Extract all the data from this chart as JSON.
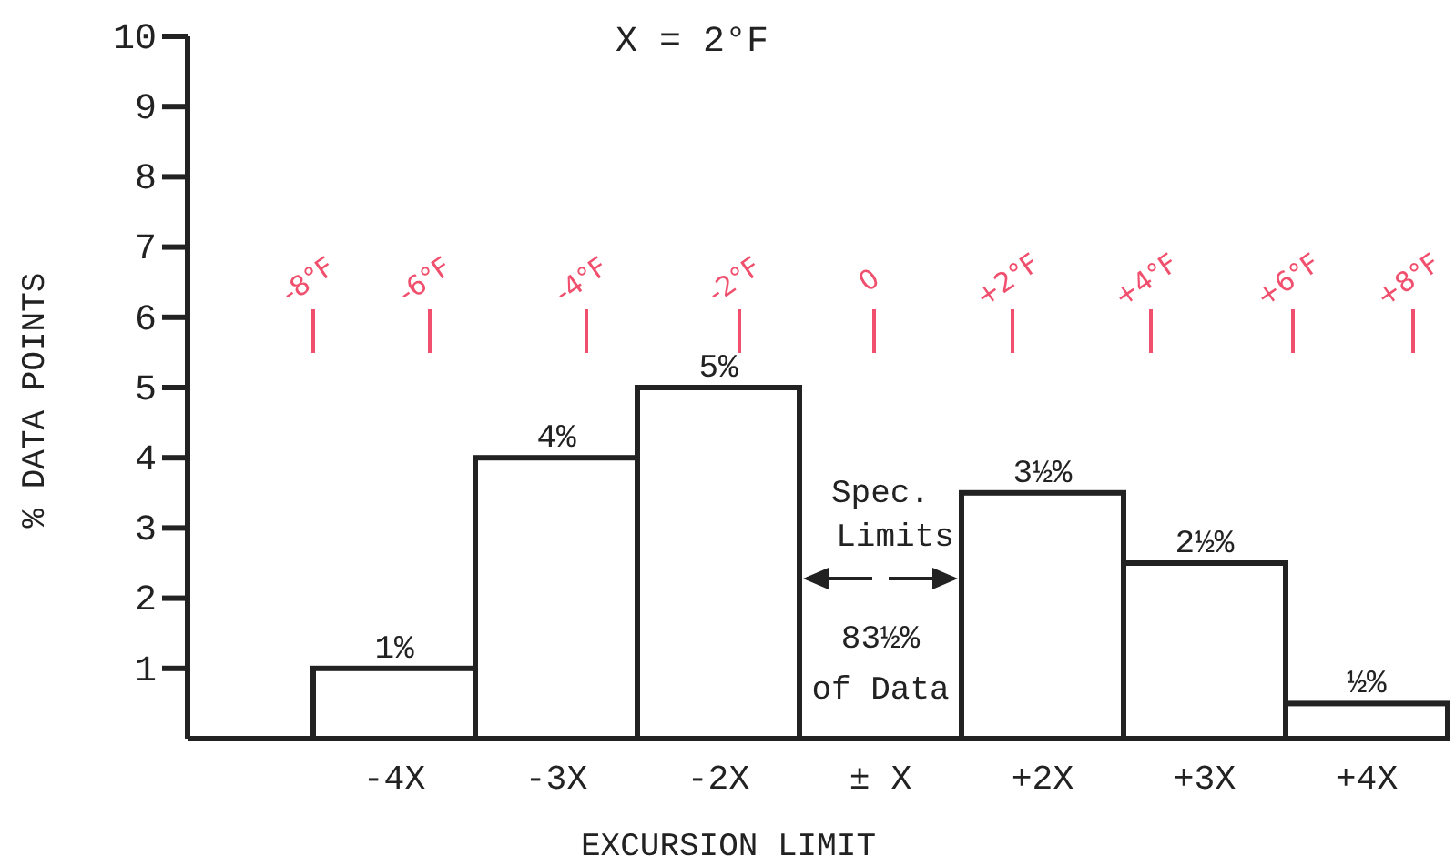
{
  "chart_data": {
    "type": "bar",
    "title": "X = 2°F",
    "xlabel": "EXCURSION LIMIT",
    "ylabel": "% DATA POINTS",
    "categories": [
      "-4X",
      "-3X",
      "-2X",
      "± X",
      "+2X",
      "+3X",
      "+4X"
    ],
    "values": [
      1,
      4,
      5,
      null,
      3.5,
      2.5,
      0.5
    ],
    "value_labels": [
      "1%",
      "4%",
      "5%",
      null,
      "3½%",
      "2½%",
      "½%"
    ],
    "color": "#ffffff",
    "ylim": [
      0,
      10
    ],
    "yticks": [
      1,
      2,
      3,
      4,
      5,
      6,
      7,
      8,
      9,
      10
    ],
    "grid": false,
    "annotations": [
      "Spec. Limits",
      "83½% of Data",
      "-8°F",
      "-6°F",
      "-4°F",
      "-2°F",
      "0",
      "+2°F",
      "+4°F",
      "+6°F",
      "+8°F"
    ]
  }
}
